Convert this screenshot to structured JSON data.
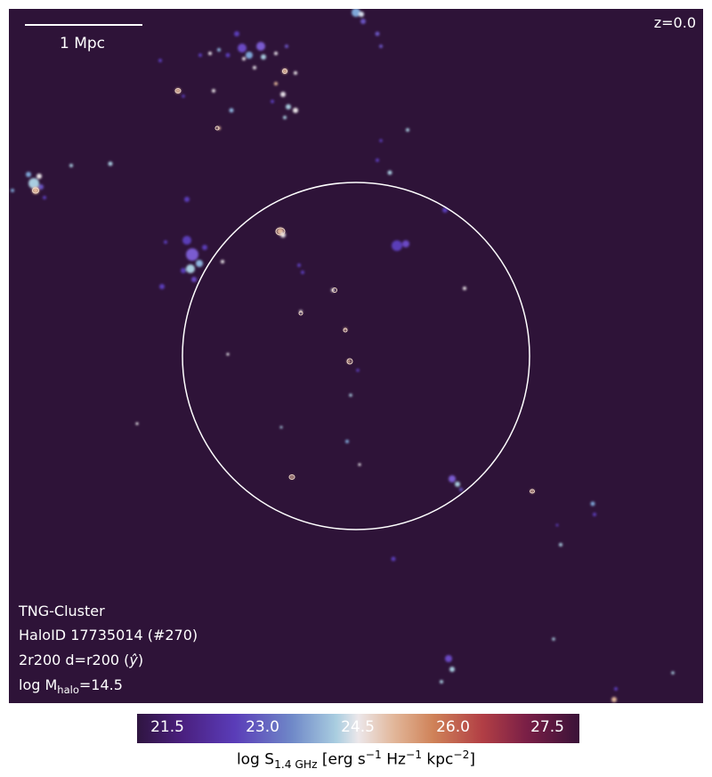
{
  "image": {
    "scale_bar": "1 Mpc",
    "redshift": "z=0.0",
    "info_lines": {
      "simulation": "TNG-Cluster",
      "halo": "HaloID 17735014 (#270)",
      "projection_prefix": "2r200 d=r200 (",
      "projection_axis": "ŷ",
      "projection_suffix": ")",
      "mass_prefix": "log M",
      "mass_sub": "halo",
      "mass_suffix": "=14.5"
    }
  },
  "colorbar": {
    "ticks": [
      "21.5",
      "23.0",
      "24.5",
      "26.0",
      "27.5"
    ],
    "label_prefix": "log S",
    "label_sub": "1.4 GHz",
    "label_unit_1": " [erg s",
    "exp_1": "−1",
    "label_unit_2": " Hz",
    "exp_2": "−1",
    "label_unit_3": " kpc",
    "exp_3": "−2",
    "label_unit_4": "]",
    "colors": {
      "background": "#2e1338",
      "low": "#4a1f7e",
      "mid": "#ece7ea",
      "high": "#b23f45"
    }
  }
}
